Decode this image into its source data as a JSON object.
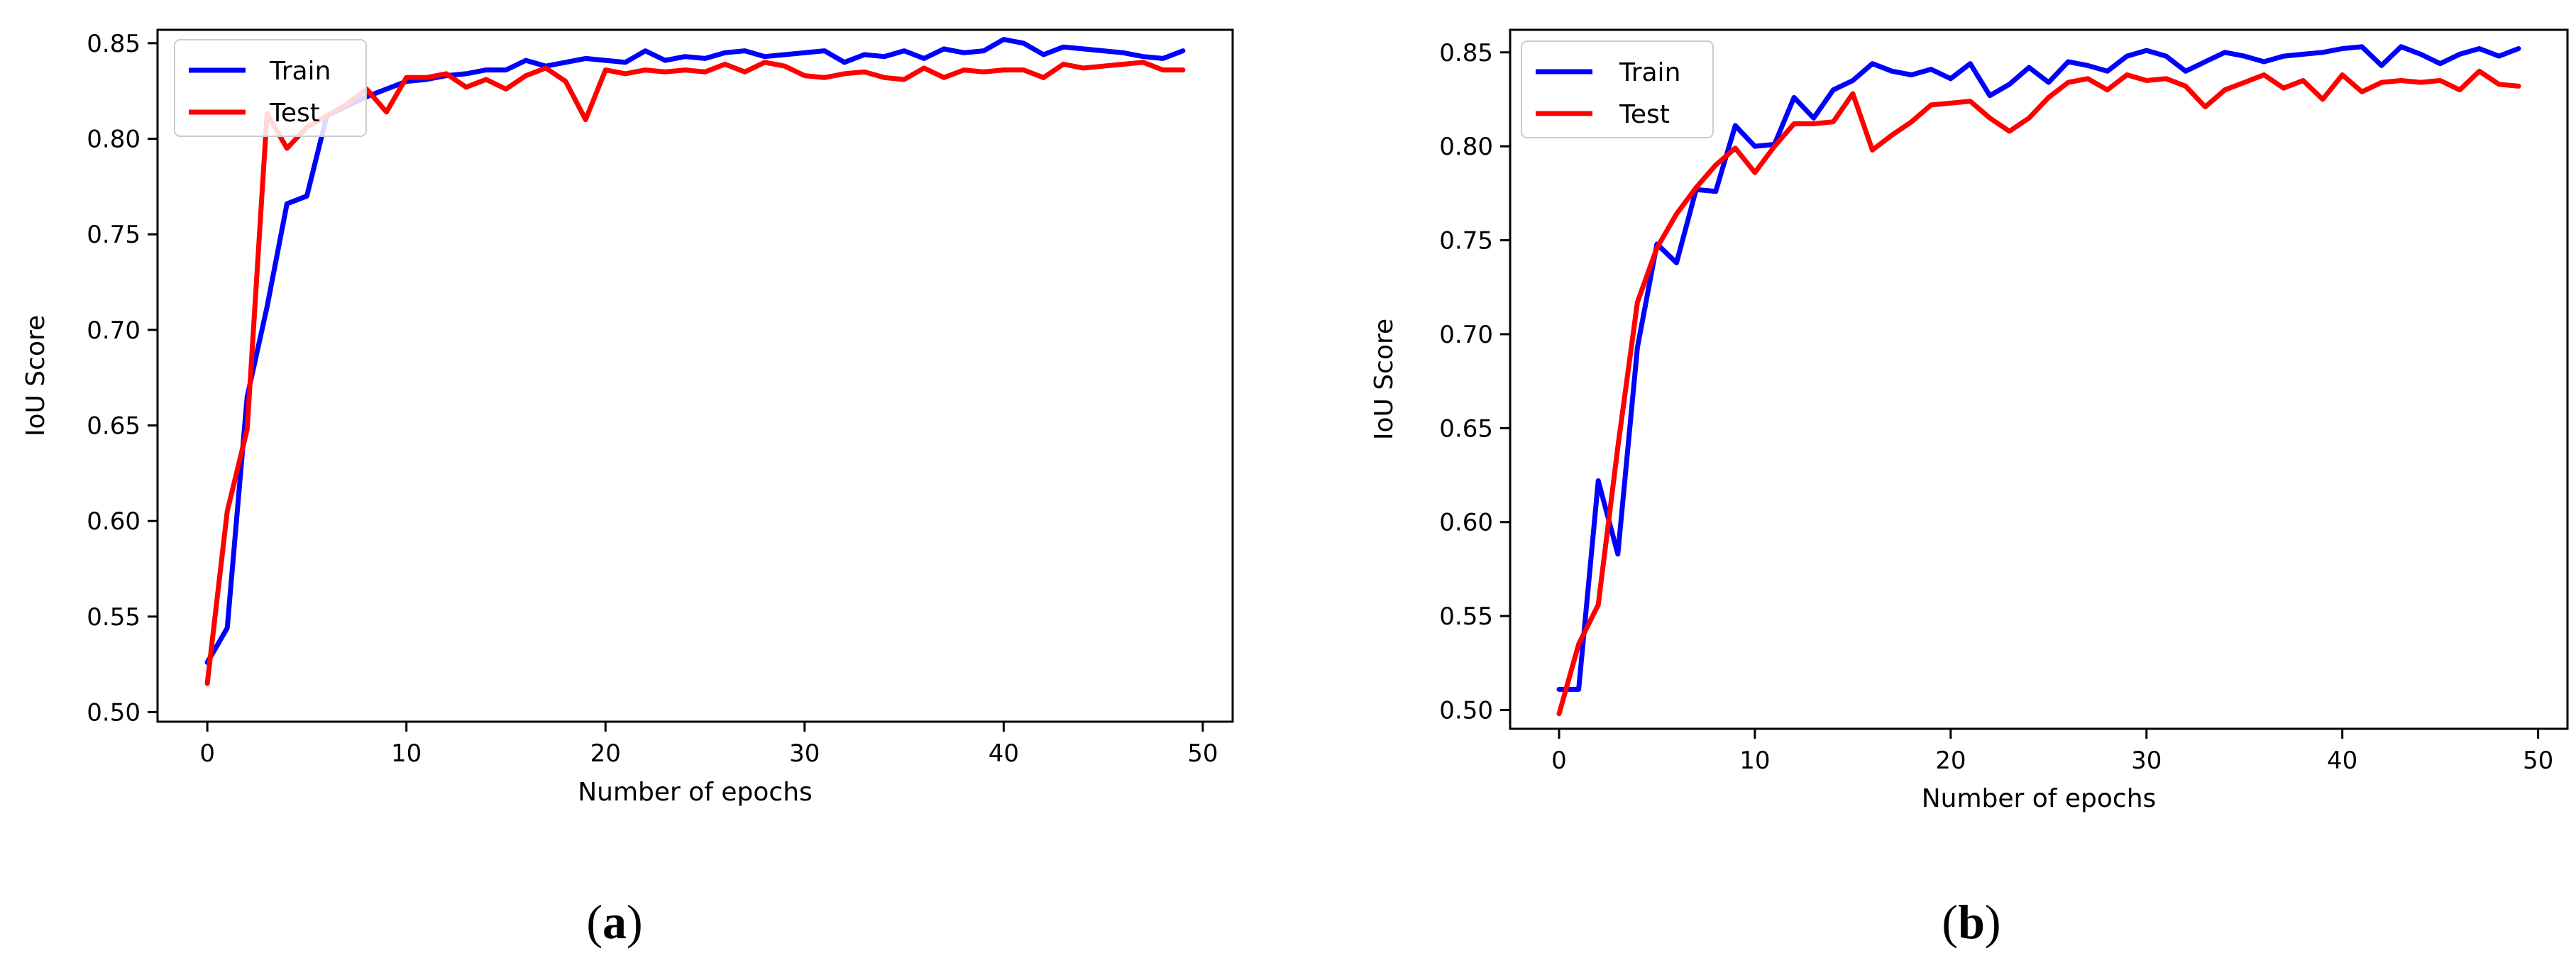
{
  "chart_data": [
    {
      "type": "line",
      "caption_open": "(",
      "caption_letter": "a",
      "caption_close": ")",
      "xlabel": "Number of epochs",
      "ylabel": "IoU Score",
      "xlim": [
        -2.5,
        51.5
      ],
      "ylim": [
        0.495,
        0.857
      ],
      "xticks": [
        0,
        10,
        20,
        30,
        40,
        50
      ],
      "yticks": [
        0.5,
        0.55,
        0.6,
        0.65,
        0.7,
        0.75,
        0.8,
        0.85
      ],
      "legend_position": "top-left",
      "series": [
        {
          "name": "Train",
          "color": "#0000ff",
          "values": [
            0.526,
            0.544,
            0.665,
            0.712,
            0.766,
            0.77,
            0.812,
            0.817,
            0.822,
            0.826,
            0.83,
            0.831,
            0.833,
            0.834,
            0.836,
            0.836,
            0.841,
            0.838,
            0.84,
            0.842,
            0.841,
            0.84,
            0.846,
            0.841,
            0.843,
            0.842,
            0.845,
            0.846,
            0.843,
            0.844,
            0.845,
            0.846,
            0.84,
            0.844,
            0.843,
            0.846,
            0.842,
            0.847,
            0.845,
            0.846,
            0.852,
            0.85,
            0.844,
            0.848,
            0.847,
            0.846,
            0.845,
            0.843,
            0.842,
            0.846
          ]
        },
        {
          "name": "Test",
          "color": "#ff0000",
          "values": [
            0.515,
            0.605,
            0.648,
            0.813,
            0.795,
            0.806,
            0.812,
            0.818,
            0.826,
            0.814,
            0.832,
            0.832,
            0.834,
            0.827,
            0.831,
            0.826,
            0.833,
            0.837,
            0.83,
            0.81,
            0.836,
            0.834,
            0.836,
            0.835,
            0.836,
            0.835,
            0.839,
            0.835,
            0.84,
            0.838,
            0.833,
            0.832,
            0.834,
            0.835,
            0.832,
            0.831,
            0.837,
            0.832,
            0.836,
            0.835,
            0.836,
            0.836,
            0.832,
            0.839,
            0.837,
            0.838,
            0.839,
            0.84,
            0.836,
            0.836
          ]
        }
      ]
    },
    {
      "type": "line",
      "caption_open": "(",
      "caption_letter": "b",
      "caption_close": ")",
      "xlabel": "Number of epochs",
      "ylabel": "IoU Score",
      "xlim": [
        -2.5,
        51.5
      ],
      "ylim": [
        0.49,
        0.862
      ],
      "xticks": [
        0,
        10,
        20,
        30,
        40,
        50
      ],
      "yticks": [
        0.5,
        0.55,
        0.6,
        0.65,
        0.7,
        0.75,
        0.8,
        0.85
      ],
      "legend_position": "top-left",
      "series": [
        {
          "name": "Train",
          "color": "#0000ff",
          "values": [
            0.511,
            0.511,
            0.622,
            0.583,
            0.693,
            0.748,
            0.738,
            0.777,
            0.776,
            0.811,
            0.8,
            0.801,
            0.826,
            0.815,
            0.83,
            0.835,
            0.844,
            0.84,
            0.838,
            0.841,
            0.836,
            0.844,
            0.827,
            0.833,
            0.842,
            0.834,
            0.845,
            0.843,
            0.84,
            0.848,
            0.851,
            0.848,
            0.84,
            0.845,
            0.85,
            0.848,
            0.845,
            0.848,
            0.849,
            0.85,
            0.852,
            0.853,
            0.843,
            0.853,
            0.849,
            0.844,
            0.849,
            0.852,
            0.848,
            0.852
          ]
        },
        {
          "name": "Test",
          "color": "#ff0000",
          "values": [
            0.498,
            0.535,
            0.556,
            0.64,
            0.717,
            0.746,
            0.764,
            0.778,
            0.79,
            0.799,
            0.786,
            0.8,
            0.812,
            0.812,
            0.813,
            0.828,
            0.798,
            0.806,
            0.813,
            0.822,
            0.823,
            0.824,
            0.815,
            0.808,
            0.815,
            0.826,
            0.834,
            0.836,
            0.83,
            0.838,
            0.835,
            0.836,
            0.832,
            0.821,
            0.83,
            0.834,
            0.838,
            0.831,
            0.835,
            0.825,
            0.838,
            0.829,
            0.834,
            0.835,
            0.834,
            0.835,
            0.83,
            0.84,
            0.833,
            0.832
          ]
        }
      ]
    }
  ]
}
